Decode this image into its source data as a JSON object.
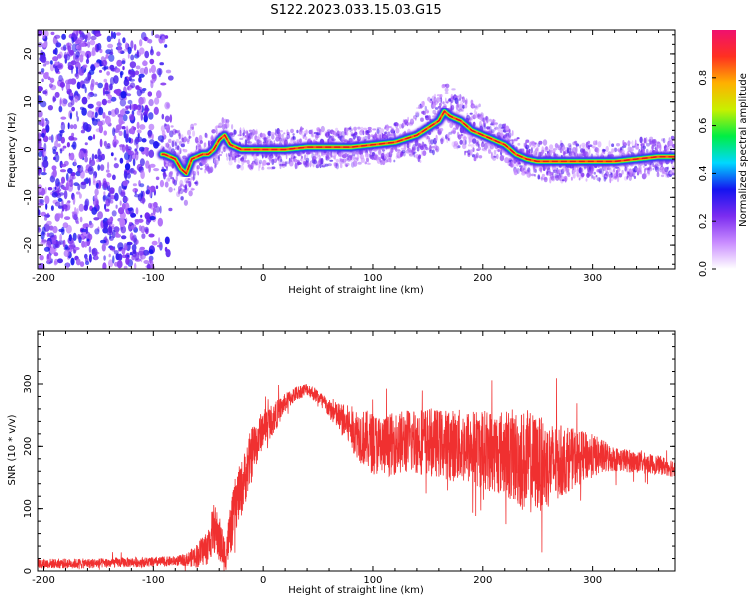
{
  "title": "S122.2023.033.15.03.G15",
  "colors": {
    "snr_line": "#f03030",
    "track_core": "#e8141c",
    "axis": "#000000"
  },
  "chart_data": [
    {
      "type": "heatmap",
      "name": "spectrogram",
      "xlabel": "Height of straight line (km)",
      "ylabel": "Frequency (Hz)",
      "xlim": [
        -205,
        375
      ],
      "ylim": [
        -25,
        25
      ],
      "x_ticks": [
        -200,
        -100,
        0,
        100,
        200,
        300
      ],
      "y_ticks": [
        -20,
        -10,
        0,
        10,
        20
      ],
      "grid": false,
      "noise_region_x": [
        -205,
        -90
      ],
      "track": {
        "x": [
          -90,
          -80,
          -75,
          -70,
          -65,
          -55,
          -50,
          -45,
          -40,
          -35,
          -30,
          -20,
          0,
          20,
          40,
          60,
          80,
          100,
          120,
          140,
          150,
          160,
          165,
          170,
          180,
          190,
          200,
          210,
          220,
          230,
          240,
          250,
          260,
          280,
          300,
          320,
          340,
          360,
          375
        ],
        "y": [
          -1,
          -2,
          -4,
          -5,
          -2,
          -1,
          -1,
          0,
          2,
          3,
          1,
          0,
          0,
          0,
          0.5,
          0.5,
          0.5,
          1,
          1.5,
          3,
          4.5,
          6,
          8,
          7,
          6,
          4,
          3,
          2,
          1,
          -1,
          -2,
          -2.5,
          -2.5,
          -2.5,
          -2.5,
          -2.5,
          -2,
          -1.5,
          -1.5
        ]
      }
    },
    {
      "type": "colorbar",
      "name": "amplitude-scale",
      "label": "Normalized spectral amplitude",
      "lim": [
        0,
        1
      ],
      "ticks": [
        0.0,
        0.2,
        0.4,
        0.6,
        0.8
      ],
      "tick_labels": [
        "0.0",
        "0.2",
        "0.4",
        "0.6",
        "0.8"
      ],
      "stops": [
        "#ffffff",
        "#c98cff",
        "#7b2cf0",
        "#1414f0",
        "#00d8ff",
        "#00ee44",
        "#c8f000",
        "#ffb000",
        "#ff3020",
        "#f0106e"
      ]
    },
    {
      "type": "line",
      "name": "snr",
      "xlabel": "Height of straight line (km)",
      "ylabel": "SNR (10 * v/v)",
      "xlim": [
        -205,
        375
      ],
      "ylim": [
        0,
        385
      ],
      "x_ticks": [
        -200,
        -100,
        0,
        100,
        200,
        300
      ],
      "y_ticks": [
        0,
        100,
        200,
        300
      ],
      "grid": false,
      "series": [
        {
          "x": [
            -205,
            -180,
            -160,
            -140,
            -120,
            -100,
            -80,
            -70,
            -60,
            -50,
            -45,
            -40,
            -35,
            -30,
            -25,
            -20,
            -15,
            -10,
            -5,
            0,
            10,
            20,
            30,
            40,
            50,
            60,
            70,
            80,
            90,
            100,
            110,
            120,
            140,
            160,
            180,
            200,
            220,
            240,
            260,
            280,
            300,
            320,
            340,
            360,
            375
          ],
          "y": [
            12,
            12,
            12,
            13,
            14,
            14,
            16,
            18,
            25,
            40,
            70,
            50,
            25,
            60,
            110,
            130,
            160,
            190,
            210,
            230,
            245,
            270,
            285,
            292,
            280,
            260,
            245,
            230,
            215,
            205,
            200,
            205,
            210,
            205,
            200,
            195,
            190,
            175,
            170,
            180,
            185,
            180,
            175,
            170,
            165
          ],
          "amplitude": [
            8,
            8,
            8,
            8,
            8,
            8,
            8,
            10,
            20,
            30,
            40,
            40,
            30,
            40,
            45,
            45,
            45,
            45,
            35,
            30,
            25,
            15,
            12,
            10,
            12,
            15,
            25,
            35,
            45,
            50,
            50,
            50,
            55,
            55,
            60,
            65,
            70,
            85,
            70,
            50,
            35,
            20,
            18,
            15,
            15
          ]
        }
      ]
    }
  ]
}
